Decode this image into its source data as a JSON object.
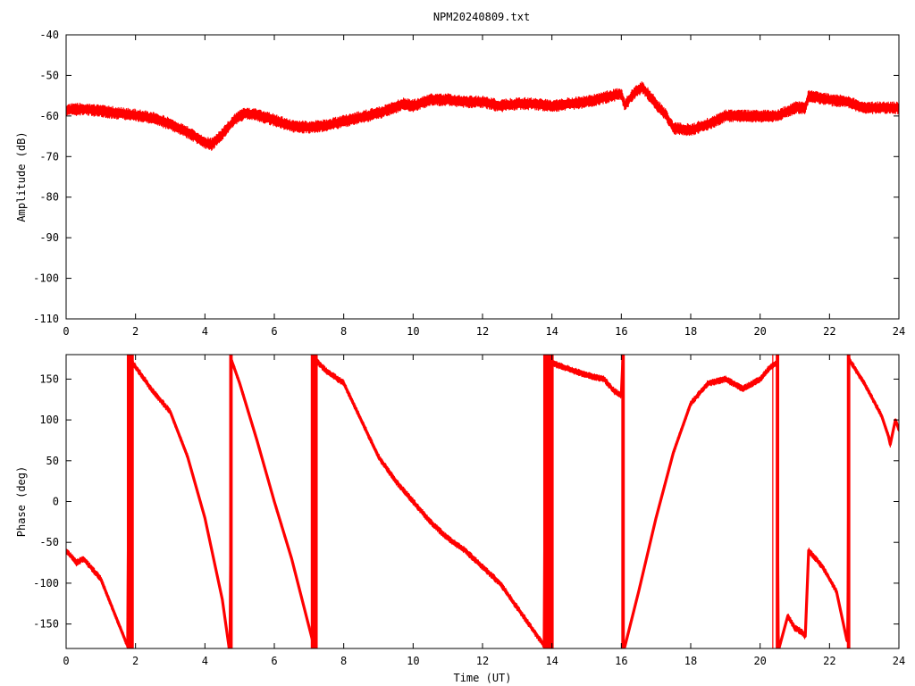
{
  "chart_data": [
    {
      "type": "line",
      "title": "NPM20240809.txt",
      "xlabel": "",
      "ylabel": "Amplitude (dB)",
      "xlim": [
        0,
        24
      ],
      "ylim": [
        -110,
        -40
      ],
      "xticks": [
        0,
        2,
        4,
        6,
        8,
        10,
        12,
        14,
        16,
        18,
        20,
        22,
        24
      ],
      "yticks": [
        -110,
        -100,
        -90,
        -80,
        -70,
        -60,
        -50,
        -40
      ],
      "xtick_labels": [
        "0",
        "2",
        "4",
        "6",
        "8",
        "10",
        "12",
        "14",
        "16",
        "18",
        "20",
        "22",
        "24"
      ],
      "ytick_labels": [
        "-110",
        "-100",
        "-90",
        "-80",
        "-70",
        "-60",
        "-50",
        "-40"
      ],
      "grid": false,
      "series": [
        {
          "color": "#ff0000",
          "noise_band": 1.5,
          "x": [
            0,
            0.5,
            1,
            1.5,
            2,
            2.5,
            3,
            3.5,
            4,
            4.2,
            4.5,
            4.8,
            5,
            5.2,
            5.5,
            6,
            6.5,
            7,
            7.5,
            8,
            8.5,
            9,
            9.5,
            9.7,
            10,
            10.5,
            11,
            11.5,
            12,
            12.5,
            13,
            13.5,
            14,
            14.5,
            15,
            15.5,
            16,
            16.1,
            16.3,
            16.6,
            17,
            17.3,
            17.5,
            18,
            18.5,
            19,
            19.5,
            20,
            20.5,
            21,
            21.3,
            21.4,
            22,
            22.5,
            23,
            23.5,
            24
          ],
          "y": [
            -58.5,
            -58.3,
            -58.8,
            -59.3,
            -59.8,
            -60.5,
            -62,
            -64,
            -66.5,
            -67,
            -64.5,
            -61.5,
            -60,
            -59.3,
            -59.8,
            -61,
            -62.5,
            -62.8,
            -62.3,
            -61.3,
            -60.3,
            -59.3,
            -57.8,
            -57,
            -57.5,
            -56,
            -56,
            -56.5,
            -56.5,
            -57.5,
            -57,
            -57,
            -57.5,
            -57,
            -56.5,
            -55.5,
            -54.5,
            -57.5,
            -55,
            -52.8,
            -57,
            -60,
            -63,
            -63.5,
            -62,
            -60,
            -60,
            -60,
            -60,
            -58,
            -58,
            -55,
            -56,
            -56.5,
            -58,
            -58,
            -58
          ]
        }
      ]
    },
    {
      "type": "line",
      "title": "",
      "xlabel": "Time (UT)",
      "ylabel": "Phase (deg)",
      "xlim": [
        0,
        24
      ],
      "ylim": [
        -180,
        180
      ],
      "xticks": [
        0,
        2,
        4,
        6,
        8,
        10,
        12,
        14,
        16,
        18,
        20,
        22,
        24
      ],
      "yticks": [
        -150,
        -100,
        -50,
        0,
        50,
        100,
        150
      ],
      "xtick_labels": [
        "0",
        "2",
        "4",
        "6",
        "8",
        "10",
        "12",
        "14",
        "16",
        "18",
        "20",
        "22",
        "24"
      ],
      "ytick_labels": [
        "-150",
        "-100",
        "-50",
        "0",
        "50",
        "100",
        "150"
      ],
      "grid": false,
      "series": [
        {
          "color": "#ff0000",
          "noise_band": 4,
          "x": [
            0,
            0.3,
            0.5,
            1,
            1.75,
            1.8,
            2,
            2.5,
            3,
            3.5,
            4,
            4.5,
            4.7,
            4.75,
            5,
            5.5,
            6,
            6.5,
            7.1,
            7.15,
            7.5,
            8,
            8.5,
            9,
            9.5,
            10,
            10.5,
            11,
            11.5,
            12,
            12.5,
            13,
            13.5,
            13.75,
            13.8,
            14,
            14.5,
            15,
            15.5,
            15.8,
            16,
            16.05,
            16.08,
            16.1,
            16.5,
            17,
            17.5,
            18,
            18.5,
            19,
            19.5,
            20,
            20.3,
            20.5,
            20.55,
            20.8,
            21,
            21.2,
            21.3,
            21.4,
            21.8,
            22.2,
            22.5,
            22.55,
            23,
            23.5,
            23.7,
            23.75,
            23.9,
            24
          ],
          "y": [
            -60,
            -75,
            -70,
            -95,
            -175,
            175,
            165,
            135,
            110,
            55,
            -20,
            -120,
            -180,
            175,
            145,
            75,
            0,
            -70,
            -170,
            175,
            160,
            145,
            100,
            55,
            25,
            0,
            -25,
            -45,
            -60,
            -80,
            -100,
            -130,
            -160,
            -175,
            178,
            170,
            162,
            155,
            150,
            135,
            130,
            180,
            -179,
            -178,
            -110,
            -20,
            60,
            120,
            145,
            150,
            138,
            150,
            165,
            170,
            -179,
            -140,
            -155,
            -160,
            -165,
            -60,
            -80,
            -110,
            -170,
            175,
            145,
            105,
            80,
            70,
            100,
            88
          ]
        }
      ],
      "wrap_bands": [
        [
          1.75,
          1.95
        ],
        [
          4.7,
          4.8
        ],
        [
          7.05,
          7.25
        ],
        [
          13.75,
          14.05
        ],
        [
          16.0,
          16.1
        ],
        [
          20.35,
          20.35
        ],
        [
          20.45,
          20.55
        ],
        [
          22.5,
          22.6
        ]
      ]
    }
  ]
}
